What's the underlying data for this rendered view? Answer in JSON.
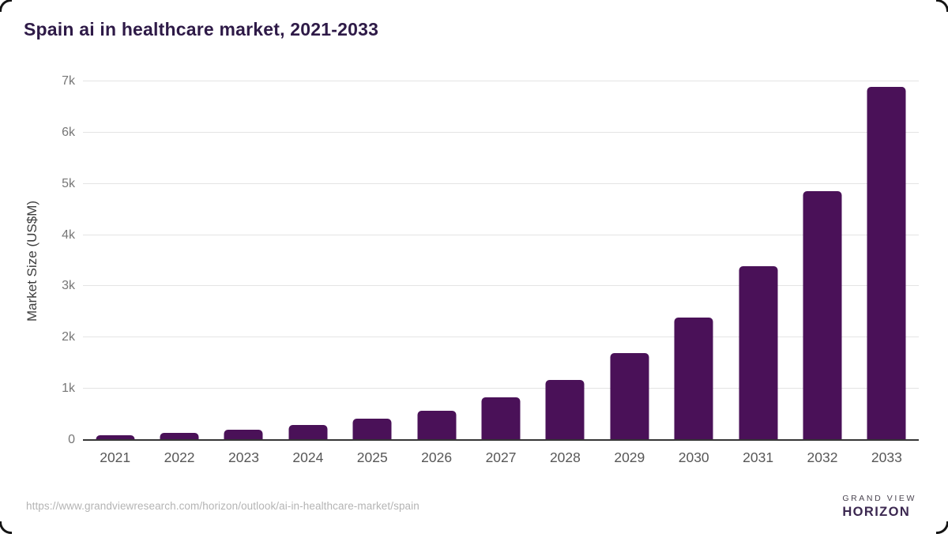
{
  "page": {
    "source_url": "https://www.grandviewresearch.com/horizon/outlook/ai-in-healthcare-market/spain"
  },
  "logo": {
    "line1": "GRAND VIEW",
    "line2": "HORIZON",
    "mark": "horizon-sun-circle-icon",
    "colors": {
      "top_half": "#2b1b41",
      "bottom_half": "#56c1ee",
      "sun": "#ffffff"
    }
  },
  "chart_data": {
    "type": "bar",
    "title": "Spain ai in healthcare market, 2021-2033",
    "categories": [
      "2021",
      "2022",
      "2023",
      "2024",
      "2025",
      "2026",
      "2027",
      "2028",
      "2029",
      "2030",
      "2031",
      "2032",
      "2033"
    ],
    "values": [
      100,
      145,
      195,
      295,
      420,
      575,
      840,
      1175,
      1690,
      2390,
      3400,
      4850,
      6900
    ],
    "series_name": "Market Size (US$M)",
    "xlabel": "",
    "ylabel": "Market Size (US$M)",
    "ylim": [
      0,
      7000
    ],
    "yticks": [
      0,
      1000,
      2000,
      3000,
      4000,
      5000,
      6000,
      7000
    ],
    "ytick_labels": [
      "0",
      "1k",
      "2k",
      "3k",
      "4k",
      "5k",
      "6k",
      "7k"
    ],
    "grid": "horizontal",
    "legend": "none",
    "bar_color": "#4a1158",
    "title_color": "#2e1a47",
    "gridline_color": "#e4e4e4"
  }
}
